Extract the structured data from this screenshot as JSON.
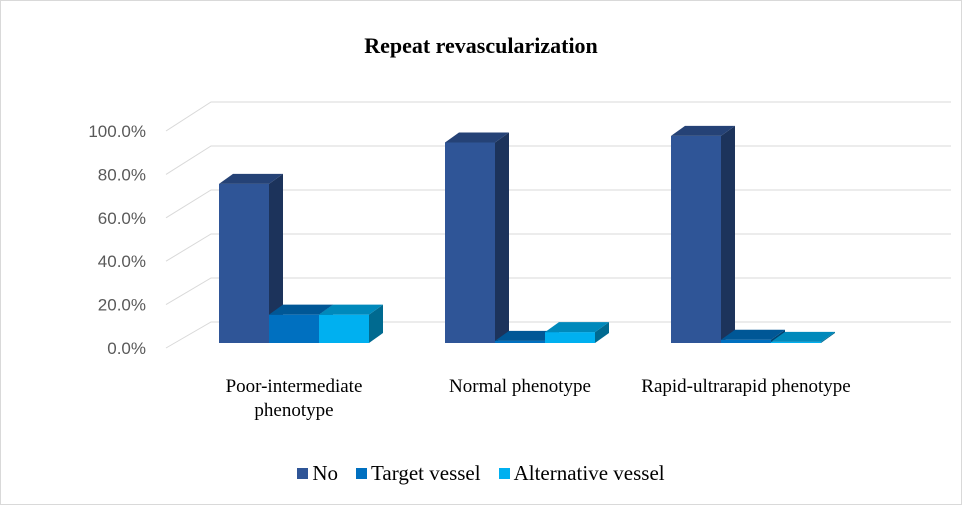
{
  "chart_data": {
    "type": "bar3d",
    "title": "Repeat revascularization",
    "categories": [
      "Poor-intermediate phenotype",
      "Normal phenotype",
      "Rapid-ultrarapid phenotype"
    ],
    "series": [
      {
        "name": "No",
        "color": "#2f5597",
        "values": [
          73,
          92,
          95
        ]
      },
      {
        "name": "Target vessel",
        "color": "#0070c0",
        "values": [
          13,
          1,
          1.5
        ]
      },
      {
        "name": "Alternative vessel",
        "color": "#00b0f0",
        "values": [
          13,
          5,
          0.5
        ]
      }
    ],
    "ylim": [
      0,
      100
    ],
    "yticks": [
      {
        "value": 0,
        "label": "0.0%"
      },
      {
        "value": 20,
        "label": "20.0%"
      },
      {
        "value": 40,
        "label": "40.0%"
      },
      {
        "value": 60,
        "label": "60.0%"
      },
      {
        "value": 80,
        "label": "80.0%"
      },
      {
        "value": 100,
        "label": "100.0%"
      }
    ],
    "grid": true,
    "legend": "bottom"
  }
}
